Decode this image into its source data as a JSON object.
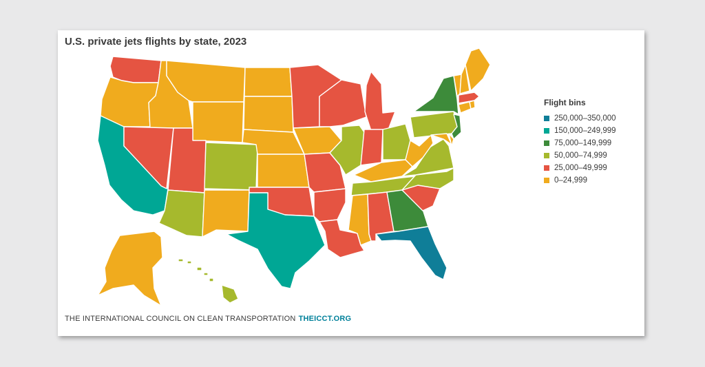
{
  "title": "U.S. private jets flights by state, 2023",
  "legend": {
    "title": "Flight bins",
    "items": [
      {
        "label": "250,000–350,000",
        "color": "#0f7e98"
      },
      {
        "label": "150,000–249,999",
        "color": "#00a795"
      },
      {
        "label": "75,000–149,999",
        "color": "#3d8b3a"
      },
      {
        "label": "50,000–74,999",
        "color": "#a6b92d"
      },
      {
        "label": "25,000–49,999",
        "color": "#e55442"
      },
      {
        "label": "0–24,999",
        "color": "#f0ab1e"
      }
    ]
  },
  "footer": {
    "org": "THE INTERNATIONAL COUNCIL ON CLEAN TRANSPORTATION",
    "url": "THEICCT.ORG"
  },
  "state_bins": {
    "FL": "250,000–350,000",
    "CA": "150,000–249,999",
    "TX": "150,000–249,999",
    "NY": "75,000–149,999",
    "NJ": "75,000–149,999",
    "GA": "75,000–149,999",
    "IL": "50,000–74,999",
    "OH": "50,000–74,999",
    "PA": "50,000–74,999",
    "VA": "50,000–74,999",
    "NC": "50,000–74,999",
    "TN": "50,000–74,999",
    "AZ": "50,000–74,999",
    "CO": "50,000–74,999",
    "HI": "50,000–74,999",
    "WA": "25,000–49,999",
    "NV": "25,000–49,999",
    "UT": "25,000–49,999",
    "MN": "25,000–49,999",
    "WI": "25,000–49,999",
    "MI": "25,000–49,999",
    "IN": "25,000–49,999",
    "MO": "25,000–49,999",
    "AR": "25,000–49,999",
    "LA": "25,000–49,999",
    "OK": "25,000–49,999",
    "AL": "25,000–49,999",
    "SC": "25,000–49,999",
    "MA": "25,000–49,999",
    "OR": "0–24,999",
    "ID": "0–24,999",
    "MT": "0–24,999",
    "WY": "0–24,999",
    "ND": "0–24,999",
    "SD": "0–24,999",
    "NE": "0–24,999",
    "KS": "0–24,999",
    "IA": "0–24,999",
    "NM": "0–24,999",
    "MS": "0–24,999",
    "KY": "0–24,999",
    "WV": "0–24,999",
    "MD": "0–24,999",
    "DE": "0–24,999",
    "CT": "0–24,999",
    "RI": "0–24,999",
    "VT": "0–24,999",
    "NH": "0–24,999",
    "ME": "0–24,999",
    "AK": "0–24,999"
  }
}
